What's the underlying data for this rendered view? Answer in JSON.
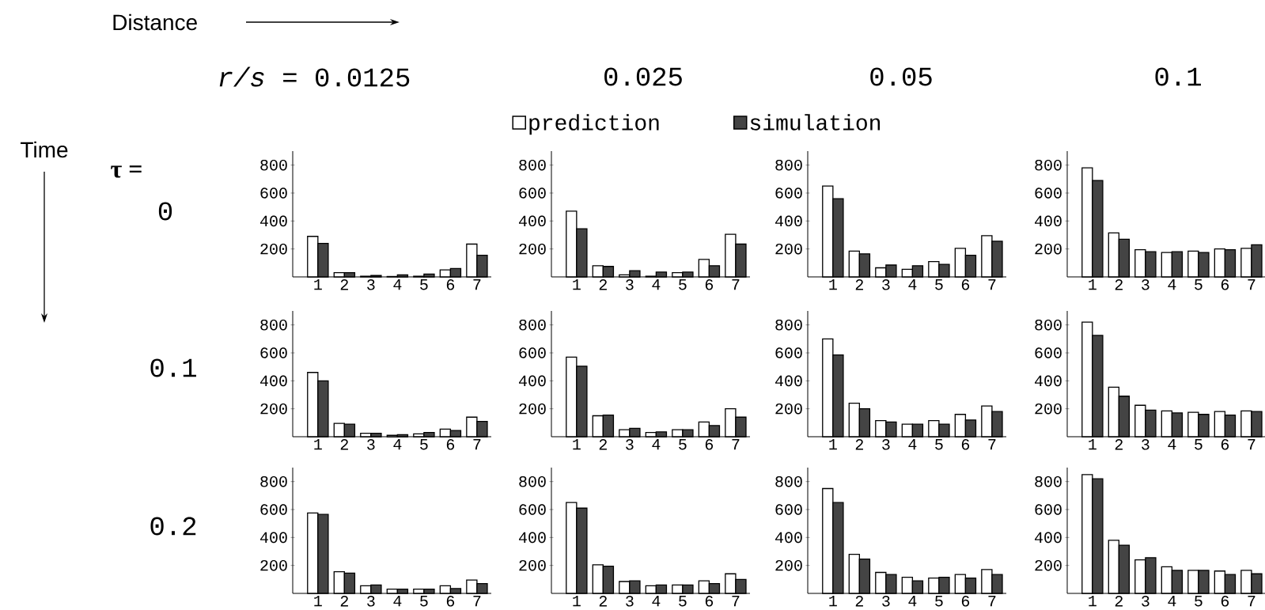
{
  "chart_data": [
    {
      "type": "bar",
      "title": "*r/s* =  0.0125",
      "ylabel": "0",
      "annotations": [
        "τ =",
        "Distance",
        "Time"
      ],
      "categories": [
        "1",
        "2",
        "3",
        "4",
        "5",
        "6",
        "7"
      ],
      "ylim": [
        0,
        900
      ],
      "yticks": [
        200,
        400,
        600,
        800
      ],
      "series": [
        {
          "color": "#ffffff",
          "values": [
            290,
            30,
            5,
            3,
            5,
            50,
            235
          ]
        },
        {
          "color": "#444444",
          "values": [
            240,
            30,
            10,
            15,
            20,
            60,
            155
          ]
        }
      ]
    },
    {
      "type": "bar",
      "title": "0.025",
      "legend": "top",
      "categories": [
        "1",
        "2",
        "3",
        "4",
        "5",
        "6",
        "7"
      ],
      "ylim": [
        0,
        900
      ],
      "yticks": [
        200,
        400,
        600,
        800
      ],
      "series": [
        {
          "name": "prediction",
          "color": "#ffffff",
          "values": [
            470,
            80,
            15,
            5,
            30,
            125,
            305
          ]
        },
        {
          "name": "simulation",
          "color": "#444444",
          "values": [
            345,
            75,
            45,
            35,
            35,
            80,
            235
          ]
        }
      ]
    },
    {
      "type": "bar",
      "title": "0.05",
      "categories": [
        "1",
        "2",
        "3",
        "4",
        "5",
        "6",
        "7"
      ],
      "ylim": [
        0,
        900
      ],
      "yticks": [
        200,
        400,
        600,
        800
      ],
      "series": [
        {
          "color": "#ffffff",
          "values": [
            650,
            185,
            65,
            55,
            110,
            205,
            295
          ]
        },
        {
          "color": "#444444",
          "values": [
            560,
            165,
            85,
            80,
            90,
            155,
            255
          ]
        }
      ]
    },
    {
      "type": "bar",
      "title": "0.1",
      "categories": [
        "1",
        "2",
        "3",
        "4",
        "5",
        "6",
        "7"
      ],
      "ylim": [
        0,
        900
      ],
      "yticks": [
        200,
        400,
        600,
        800
      ],
      "series": [
        {
          "color": "#ffffff",
          "values": [
            780,
            315,
            195,
            175,
            185,
            200,
            205
          ]
        },
        {
          "color": "#444444",
          "values": [
            690,
            270,
            180,
            180,
            175,
            195,
            230
          ]
        }
      ]
    },
    {
      "type": "bar",
      "ylabel": "0.1",
      "categories": [
        "1",
        "2",
        "3",
        "4",
        "5",
        "6",
        "7"
      ],
      "ylim": [
        0,
        900
      ],
      "yticks": [
        200,
        400,
        600,
        800
      ],
      "series": [
        {
          "color": "#ffffff",
          "values": [
            460,
            95,
            25,
            10,
            20,
            55,
            140
          ]
        },
        {
          "color": "#444444",
          "values": [
            400,
            90,
            25,
            15,
            30,
            45,
            110
          ]
        }
      ]
    },
    {
      "type": "bar",
      "categories": [
        "1",
        "2",
        "3",
        "4",
        "5",
        "6",
        "7"
      ],
      "ylim": [
        0,
        900
      ],
      "yticks": [
        200,
        400,
        600,
        800
      ],
      "series": [
        {
          "color": "#ffffff",
          "values": [
            570,
            150,
            50,
            30,
            50,
            105,
            200
          ]
        },
        {
          "color": "#444444",
          "values": [
            505,
            155,
            60,
            35,
            50,
            80,
            140
          ]
        }
      ]
    },
    {
      "type": "bar",
      "categories": [
        "1",
        "2",
        "3",
        "4",
        "5",
        "6",
        "7"
      ],
      "ylim": [
        0,
        900
      ],
      "yticks": [
        200,
        400,
        600,
        800
      ],
      "series": [
        {
          "color": "#ffffff",
          "values": [
            700,
            240,
            115,
            90,
            115,
            160,
            220
          ]
        },
        {
          "color": "#444444",
          "values": [
            585,
            200,
            105,
            90,
            90,
            120,
            180
          ]
        }
      ]
    },
    {
      "type": "bar",
      "categories": [
        "1",
        "2",
        "3",
        "4",
        "5",
        "6",
        "7"
      ],
      "ylim": [
        0,
        900
      ],
      "yticks": [
        200,
        400,
        600,
        800
      ],
      "series": [
        {
          "color": "#ffffff",
          "values": [
            820,
            355,
            225,
            185,
            175,
            180,
            185
          ]
        },
        {
          "color": "#444444",
          "values": [
            725,
            290,
            190,
            170,
            160,
            155,
            180
          ]
        }
      ]
    },
    {
      "type": "bar",
      "ylabel": "0.2",
      "categories": [
        "1",
        "2",
        "3",
        "4",
        "5",
        "6",
        "7"
      ],
      "ylim": [
        0,
        900
      ],
      "yticks": [
        200,
        400,
        600,
        800
      ],
      "series": [
        {
          "color": "#ffffff",
          "values": [
            575,
            155,
            55,
            30,
            30,
            55,
            95
          ]
        },
        {
          "color": "#444444",
          "values": [
            565,
            145,
            60,
            30,
            30,
            35,
            70
          ]
        }
      ]
    },
    {
      "type": "bar",
      "categories": [
        "1",
        "2",
        "3",
        "4",
        "5",
        "6",
        "7"
      ],
      "ylim": [
        0,
        900
      ],
      "yticks": [
        200,
        400,
        600,
        800
      ],
      "series": [
        {
          "color": "#ffffff",
          "values": [
            650,
            205,
            85,
            55,
            60,
            90,
            140
          ]
        },
        {
          "color": "#444444",
          "values": [
            610,
            195,
            90,
            60,
            60,
            70,
            100
          ]
        }
      ]
    },
    {
      "type": "bar",
      "categories": [
        "1",
        "2",
        "3",
        "4",
        "5",
        "6",
        "7"
      ],
      "ylim": [
        0,
        900
      ],
      "yticks": [
        200,
        400,
        600,
        800
      ],
      "series": [
        {
          "color": "#ffffff",
          "values": [
            750,
            280,
            150,
            115,
            110,
            135,
            170
          ]
        },
        {
          "color": "#444444",
          "values": [
            650,
            245,
            135,
            90,
            115,
            110,
            135
          ]
        }
      ]
    },
    {
      "type": "bar",
      "categories": [
        "1",
        "2",
        "3",
        "4",
        "5",
        "6",
        "7"
      ],
      "ylim": [
        0,
        900
      ],
      "yticks": [
        200,
        400,
        600,
        800
      ],
      "series": [
        {
          "color": "#ffffff",
          "values": [
            850,
            380,
            240,
            190,
            165,
            160,
            165
          ]
        },
        {
          "color": "#444444",
          "values": [
            820,
            345,
            255,
            165,
            165,
            135,
            140
          ]
        }
      ]
    }
  ]
}
